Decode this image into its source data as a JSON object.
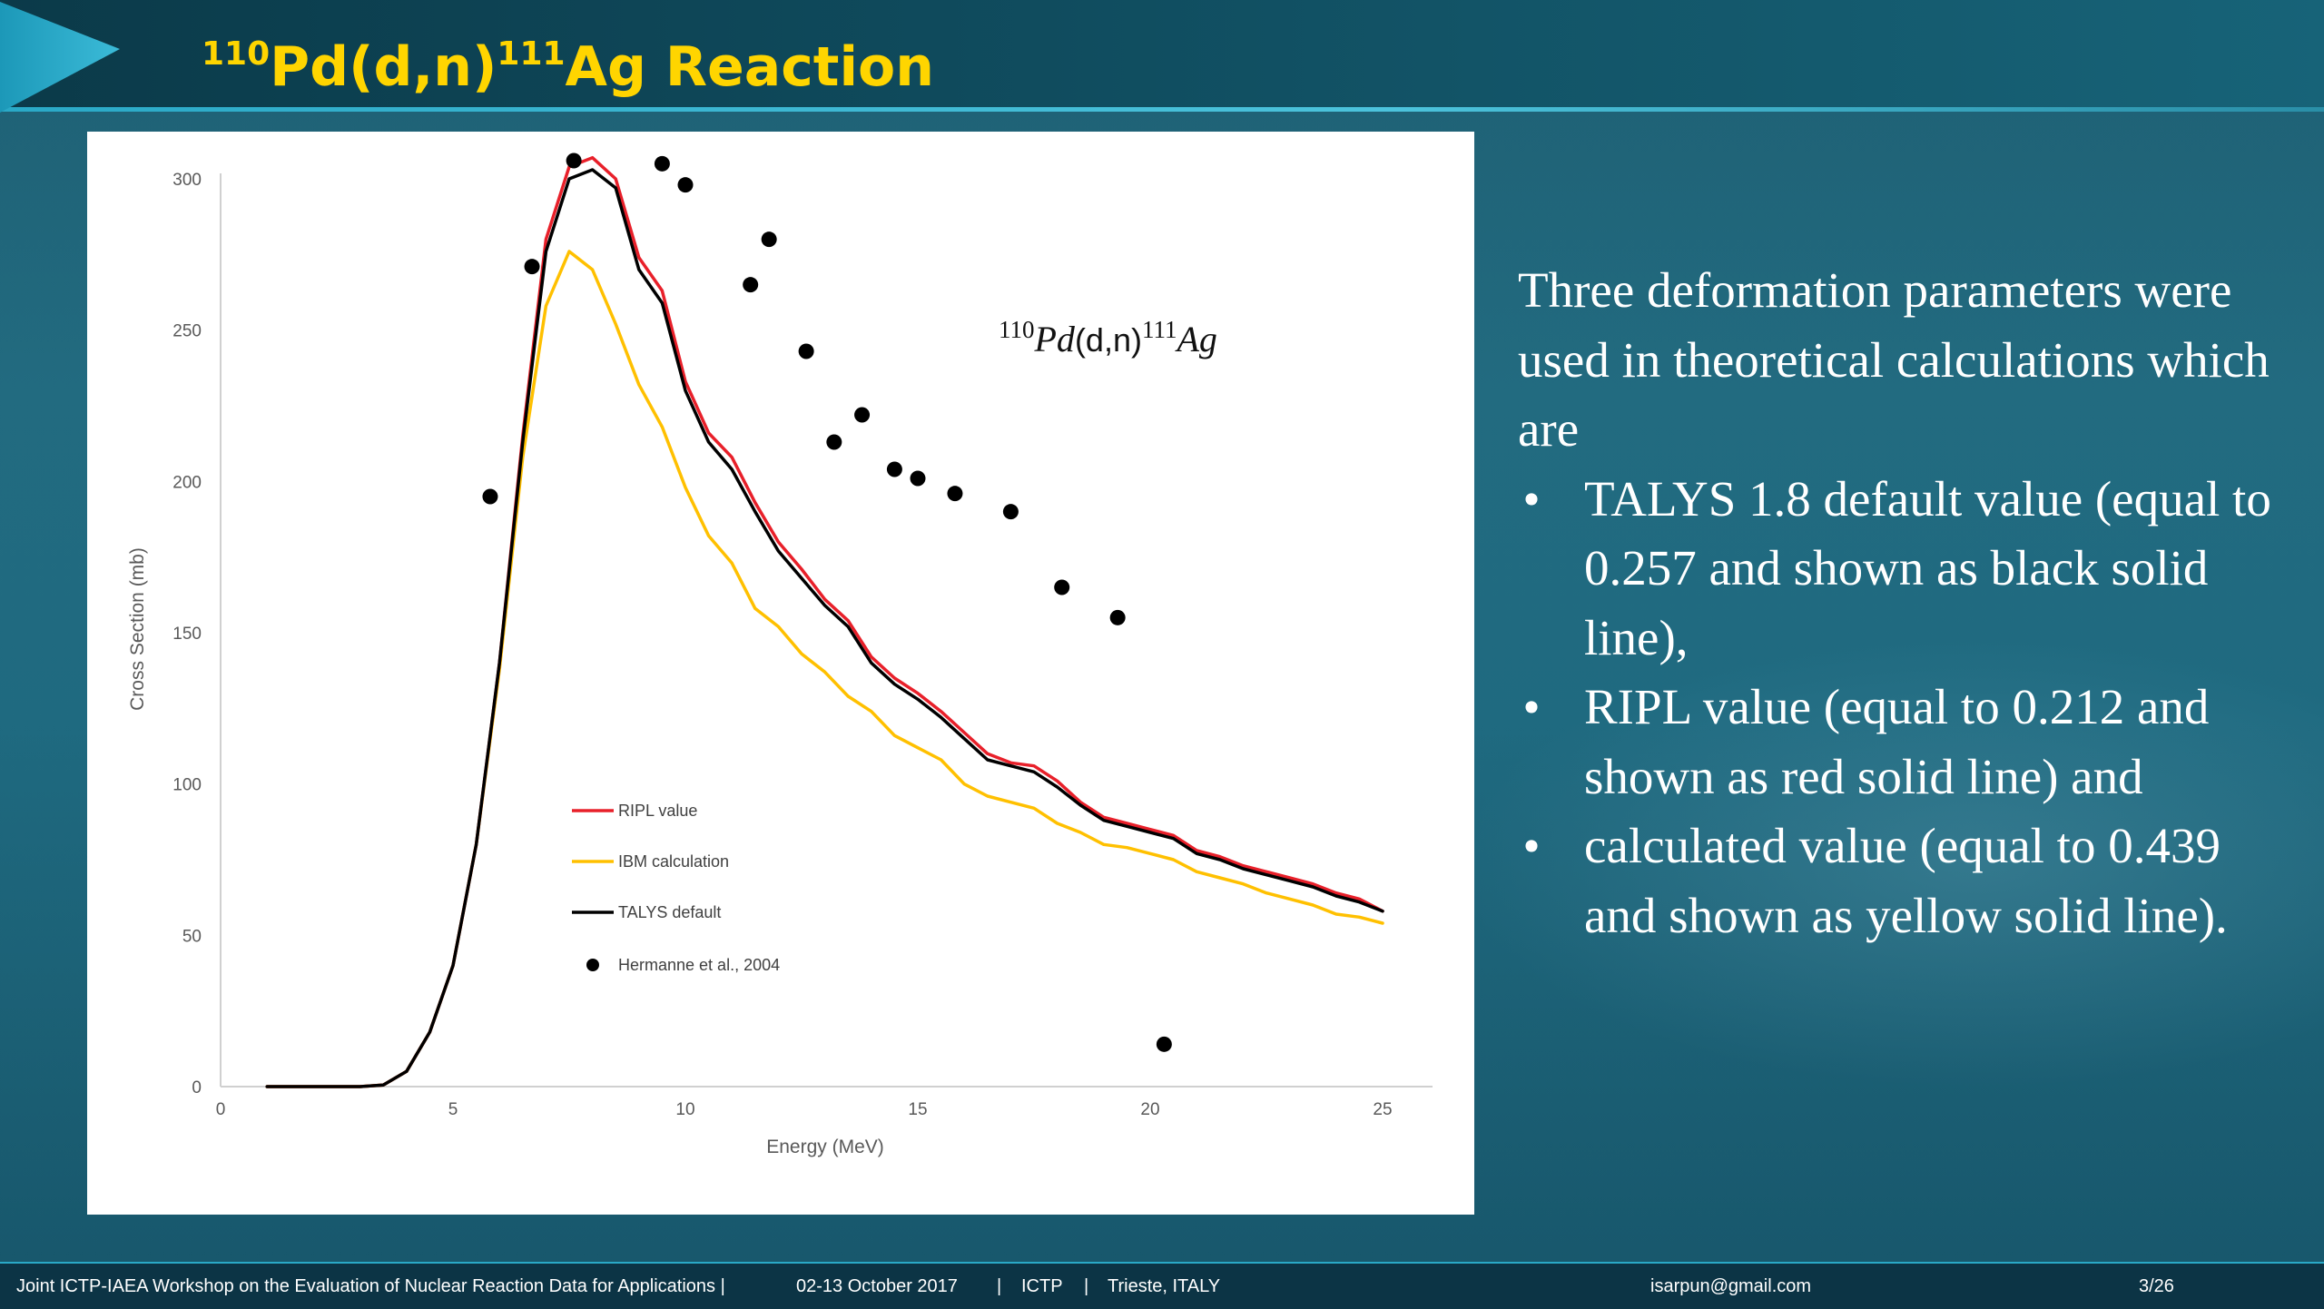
{
  "slide": {
    "title_mass_target": "110",
    "title_reaction": "Pd(d,n)",
    "title_mass_product": "111",
    "title_element": "Ag Reaction"
  },
  "body_text": {
    "intro": "Three deformation parameters were used in theoretical calculations which are",
    "bullet_symbol": "•",
    "bullets": [
      "TALYS 1.8 default value (equal to 0.257 and shown as black solid line),",
      "RIPL value (equal to 0.212 and shown as red solid line) and",
      "calculated value (equal to 0.439 and shown as yellow solid line)."
    ]
  },
  "footer": {
    "workshop": "Joint ICTP-IAEA Workshop on the Evaluation of Nuclear Reaction Data for Applications |",
    "dates": "02-13 October 2017",
    "sep": "|",
    "org": "ICTP",
    "location": "Trieste, ITALY",
    "email": "isarpun@gmail.com",
    "page": "3/26"
  },
  "chart_data": {
    "type": "line",
    "annotation": {
      "mass_target": "110",
      "target": "Pd",
      "reaction": "(d,n)",
      "mass_product": "111",
      "product": "Ag"
    },
    "xlabel": "Energy (MeV)",
    "ylabel": "Cross Section (mb)",
    "xlim": [
      0,
      26
    ],
    "ylim": [
      0,
      300
    ],
    "xticks": [
      0,
      5,
      10,
      15,
      20,
      25
    ],
    "yticks": [
      0,
      50,
      100,
      150,
      200,
      250,
      300
    ],
    "grid": false,
    "legend_position": "lower-left",
    "series": [
      {
        "name": "RIPL value",
        "color": "#e8202a",
        "style": "line",
        "x": [
          1,
          2,
          3,
          3.5,
          4,
          4.5,
          5,
          5.5,
          6,
          6.5,
          7,
          7.5,
          8,
          8.5,
          9,
          9.5,
          10,
          10.5,
          11,
          11.5,
          12,
          12.5,
          13,
          13.5,
          14,
          14.5,
          15,
          15.5,
          16,
          16.5,
          17,
          17.5,
          18,
          18.5,
          19,
          19.5,
          20,
          20.5,
          21,
          21.5,
          22,
          22.5,
          23,
          23.5,
          24,
          24.5,
          25
        ],
        "y": [
          0,
          0,
          0,
          0.5,
          5,
          18,
          40,
          80,
          140,
          215,
          280,
          304,
          307,
          300,
          274,
          263,
          233,
          216,
          208,
          193,
          180,
          171,
          161,
          154,
          142,
          135,
          130,
          124,
          117,
          110,
          107,
          106,
          101,
          94,
          89,
          87,
          85,
          83,
          78,
          76,
          73,
          71,
          69,
          67,
          64,
          62,
          58
        ]
      },
      {
        "name": "IBM calculation",
        "color": "#ffc000",
        "style": "line",
        "x": [
          1,
          2,
          3,
          3.5,
          4,
          4.5,
          5,
          5.5,
          6,
          6.5,
          7,
          7.5,
          8,
          8.5,
          9,
          9.5,
          10,
          10.5,
          11,
          11.5,
          12,
          12.5,
          13,
          13.5,
          14,
          14.5,
          15,
          15.5,
          16,
          16.5,
          17,
          17.5,
          18,
          18.5,
          19,
          19.5,
          20,
          20.5,
          21,
          21.5,
          22,
          22.5,
          23,
          23.5,
          24,
          24.5,
          25
        ],
        "y": [
          0,
          0,
          0,
          0.5,
          5,
          18,
          40,
          80,
          138,
          208,
          258,
          276,
          270,
          252,
          232,
          218,
          198,
          182,
          173,
          158,
          152,
          143,
          137,
          129,
          124,
          116,
          112,
          108,
          100,
          96,
          94,
          92,
          87,
          84,
          80,
          79,
          77,
          75,
          71,
          69,
          67,
          64,
          62,
          60,
          57,
          56,
          54
        ]
      },
      {
        "name": "TALYS default",
        "color": "#000000",
        "style": "line",
        "x": [
          1,
          2,
          3,
          3.5,
          4,
          4.5,
          5,
          5.5,
          6,
          6.5,
          7,
          7.5,
          8,
          8.5,
          9,
          9.5,
          10,
          10.5,
          11,
          11.5,
          12,
          12.5,
          13,
          13.5,
          14,
          14.5,
          15,
          15.5,
          16,
          16.5,
          17,
          17.5,
          18,
          18.5,
          19,
          19.5,
          20,
          20.5,
          21,
          21.5,
          22,
          22.5,
          23,
          23.5,
          24,
          24.5,
          25
        ],
        "y": [
          0,
          0,
          0,
          0.5,
          5,
          18,
          40,
          80,
          140,
          213,
          276,
          300,
          303,
          297,
          270,
          259,
          230,
          213,
          204,
          190,
          177,
          168,
          159,
          152,
          140,
          133,
          128,
          122,
          115,
          108,
          106,
          104,
          99,
          93,
          88,
          86,
          84,
          82,
          77,
          75,
          72,
          70,
          68,
          66,
          63,
          61,
          58
        ]
      },
      {
        "name": "Hermanne et al., 2004",
        "color": "#000000",
        "style": "scatter",
        "x": [
          5.8,
          6.7,
          7.6,
          9.5,
          10.0,
          11.4,
          11.8,
          12.6,
          13.2,
          13.8,
          14.5,
          15.0,
          15.8,
          17.0,
          18.1,
          19.3,
          20.3
        ],
        "y": [
          195,
          271,
          306,
          305,
          298,
          265,
          280,
          243,
          213,
          222,
          204,
          201,
          196,
          190,
          165,
          155,
          14
        ]
      }
    ]
  }
}
